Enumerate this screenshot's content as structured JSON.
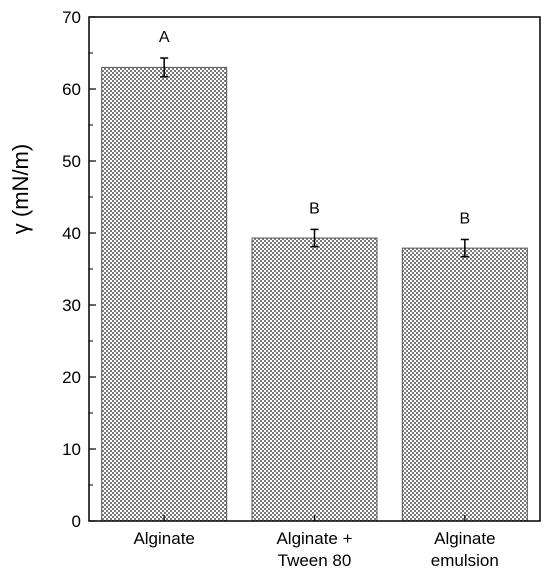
{
  "chart_data": {
    "type": "bar",
    "title": "",
    "xlabel": "",
    "ylabel": "γ (mN/m)",
    "ylim": [
      0,
      70
    ],
    "yticks": [
      0,
      10,
      20,
      30,
      40,
      50,
      60,
      70
    ],
    "categories": [
      [
        "Alginate"
      ],
      [
        "Alginate +",
        "Tween 80"
      ],
      [
        "Alginate",
        "emulsion"
      ]
    ],
    "values": [
      63.0,
      39.3,
      37.9
    ],
    "errors": [
      1.3,
      1.2,
      1.2
    ],
    "significance": [
      "A",
      "B",
      "B"
    ],
    "bar_fill": "checkered-gray",
    "grid": false,
    "legend": "none"
  }
}
